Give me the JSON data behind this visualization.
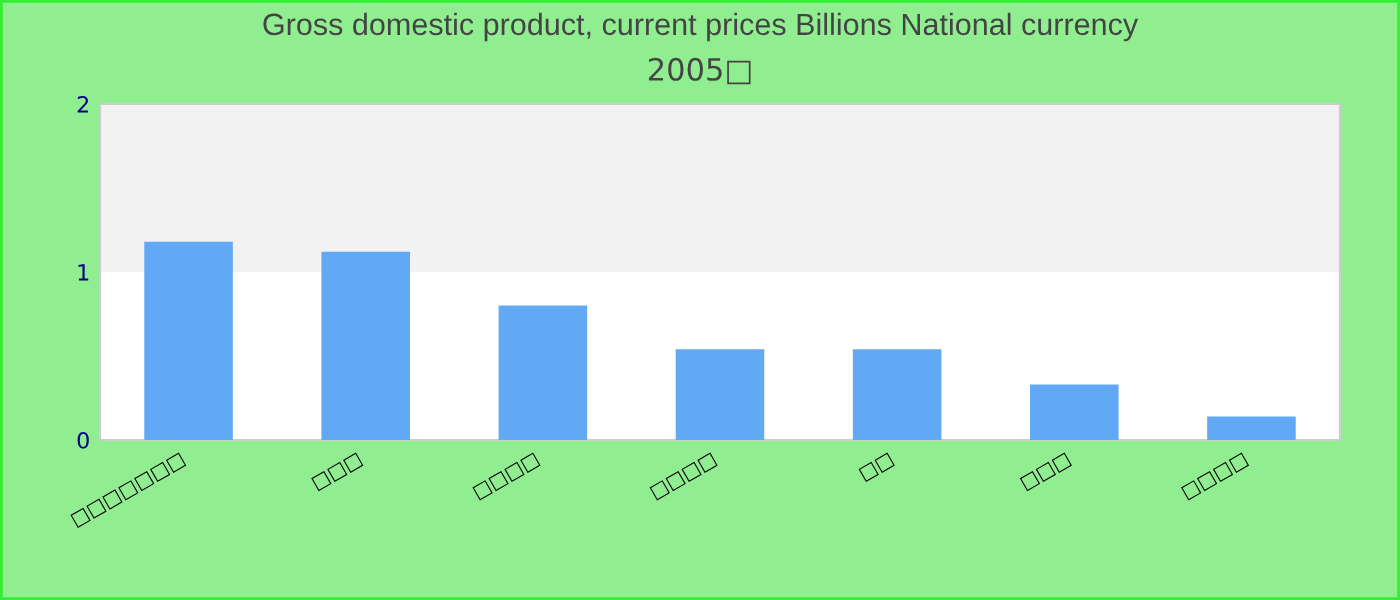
{
  "chart_data": {
    "type": "bar",
    "title": "Gross domestic product, current prices Billions National currency",
    "subtitle": "2005□",
    "categories": [
      "□□□□□□□",
      "□□□",
      "□□□□",
      "□□□□",
      "□□",
      "□□□",
      "□□□□"
    ],
    "values": [
      1.18,
      1.12,
      0.8,
      0.54,
      0.54,
      0.33,
      0.14
    ],
    "color": "#62a9f5",
    "ylim": [
      0,
      2
    ],
    "yticks": [
      0,
      1,
      2
    ],
    "bands": [
      {
        "axis": "y",
        "from": 1,
        "to": 2,
        "color": "#f2f2f2"
      }
    ],
    "grid": false
  }
}
